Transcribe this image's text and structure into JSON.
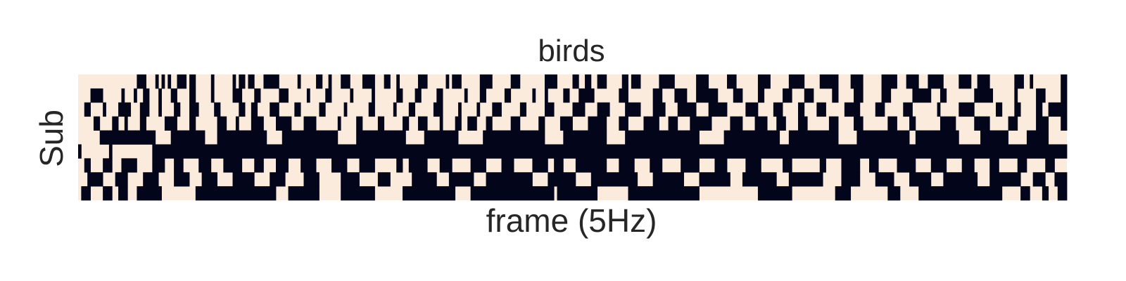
{
  "chart_data": {
    "type": "heatmap",
    "title": "birds",
    "xlabel": "frame (5Hz)",
    "ylabel": "Sub",
    "n_rows": 9,
    "n_frames": 320,
    "colors": {
      "0": "#faebdd",
      "1": "#03051a"
    },
    "grid": false,
    "x_ticks": false,
    "y_ticks": false,
    "colorbar": false,
    "rows": [
      {
        "on": [
          [
            19,
            21
          ],
          [
            25,
            25
          ],
          [
            27,
            27
          ],
          [
            29,
            29
          ],
          [
            32,
            34
          ],
          [
            36,
            37
          ],
          [
            43,
            43
          ],
          [
            50,
            50
          ],
          [
            52,
            53
          ],
          [
            55,
            56
          ],
          [
            60,
            64
          ],
          [
            71,
            71
          ],
          [
            77,
            78
          ],
          [
            81,
            81
          ],
          [
            85,
            87
          ],
          [
            92,
            95
          ],
          [
            99,
            100
          ],
          [
            103,
            103
          ],
          [
            110,
            112
          ],
          [
            119,
            119
          ],
          [
            121,
            123
          ],
          [
            130,
            133
          ],
          [
            140,
            142
          ],
          [
            151,
            154
          ],
          [
            160,
            161
          ],
          [
            164,
            165
          ],
          [
            168,
            170
          ],
          [
            176,
            177
          ],
          [
            179,
            181
          ],
          [
            188,
            192
          ],
          [
            200,
            203
          ],
          [
            210,
            212
          ],
          [
            220,
            223
          ],
          [
            230,
            234
          ],
          [
            240,
            245
          ],
          [
            250,
            253
          ],
          [
            260,
            264
          ],
          [
            268,
            271
          ],
          [
            275,
            279
          ],
          [
            285,
            288
          ],
          [
            291,
            294
          ],
          [
            303,
            305
          ],
          [
            308,
            308
          ],
          [
            318,
            319
          ]
        ]
      },
      {
        "on": [
          [
            4,
            7
          ],
          [
            14,
            14
          ],
          [
            18,
            18
          ],
          [
            21,
            22
          ],
          [
            26,
            26
          ],
          [
            30,
            31
          ],
          [
            36,
            37
          ],
          [
            43,
            43
          ],
          [
            50,
            52
          ],
          [
            57,
            58
          ],
          [
            65,
            67
          ],
          [
            74,
            74
          ],
          [
            80,
            81
          ],
          [
            88,
            88
          ],
          [
            95,
            95
          ],
          [
            103,
            104
          ],
          [
            109,
            110
          ],
          [
            116,
            117
          ],
          [
            125,
            125
          ],
          [
            130,
            131
          ],
          [
            138,
            139
          ],
          [
            147,
            147
          ],
          [
            151,
            151
          ],
          [
            157,
            158
          ],
          [
            162,
            166
          ],
          [
            175,
            177
          ],
          [
            186,
            188
          ],
          [
            193,
            196
          ],
          [
            200,
            206
          ],
          [
            212,
            214
          ],
          [
            220,
            221
          ],
          [
            228,
            230
          ],
          [
            235,
            237
          ],
          [
            244,
            245
          ],
          [
            251,
            253
          ],
          [
            260,
            262
          ],
          [
            270,
            275
          ],
          [
            279,
            280
          ],
          [
            290,
            295
          ],
          [
            303,
            303
          ],
          [
            310,
            312
          ],
          [
            318,
            319
          ]
        ]
      },
      {
        "on": [
          [
            2,
            3
          ],
          [
            8,
            8
          ],
          [
            13,
            16
          ],
          [
            20,
            22
          ],
          [
            26,
            26
          ],
          [
            31,
            32
          ],
          [
            36,
            38
          ],
          [
            44,
            45
          ],
          [
            52,
            53
          ],
          [
            56,
            57
          ],
          [
            62,
            64
          ],
          [
            70,
            71
          ],
          [
            78,
            79
          ],
          [
            86,
            86
          ],
          [
            94,
            95
          ],
          [
            102,
            102
          ],
          [
            107,
            108
          ],
          [
            115,
            117
          ],
          [
            123,
            123
          ],
          [
            129,
            129
          ],
          [
            134,
            136
          ],
          [
            143,
            144
          ],
          [
            151,
            153
          ],
          [
            160,
            163
          ],
          [
            168,
            171
          ],
          [
            177,
            181
          ],
          [
            186,
            189
          ],
          [
            194,
            199
          ],
          [
            204,
            209
          ],
          [
            216,
            219
          ],
          [
            225,
            227
          ],
          [
            233,
            234
          ],
          [
            239,
            241
          ],
          [
            248,
            252
          ],
          [
            258,
            260
          ],
          [
            267,
            269
          ],
          [
            278,
            278
          ],
          [
            285,
            289
          ],
          [
            297,
            298
          ],
          [
            303,
            304
          ],
          [
            310,
            311
          ],
          [
            314,
            319
          ]
        ]
      },
      {
        "on": [
          [
            5,
            6
          ],
          [
            11,
            12
          ],
          [
            15,
            15
          ],
          [
            20,
            21
          ],
          [
            28,
            31
          ],
          [
            36,
            37
          ],
          [
            45,
            47
          ],
          [
            51,
            51
          ],
          [
            56,
            59
          ],
          [
            64,
            68
          ],
          [
            73,
            76
          ],
          [
            84,
            84
          ],
          [
            90,
            91
          ],
          [
            97,
            98
          ],
          [
            105,
            106
          ],
          [
            110,
            112
          ],
          [
            117,
            117
          ],
          [
            122,
            123
          ],
          [
            126,
            128
          ],
          [
            132,
            133
          ],
          [
            140,
            142
          ],
          [
            149,
            150
          ],
          [
            156,
            159
          ],
          [
            165,
            170
          ],
          [
            175,
            177
          ],
          [
            183,
            187
          ],
          [
            191,
            193
          ],
          [
            198,
            204
          ],
          [
            211,
            214
          ],
          [
            219,
            222
          ],
          [
            226,
            228
          ],
          [
            233,
            235
          ],
          [
            243,
            245
          ],
          [
            251,
            253
          ],
          [
            262,
            264
          ],
          [
            269,
            270
          ],
          [
            279,
            283
          ],
          [
            290,
            294
          ],
          [
            301,
            303
          ],
          [
            310,
            313
          ],
          [
            318,
            319
          ]
        ]
      },
      {
        "on": [
          [
            7,
            24
          ],
          [
            30,
            40
          ],
          [
            45,
            60
          ],
          [
            66,
            83
          ],
          [
            90,
            105
          ],
          [
            112,
            122
          ],
          [
            131,
            150
          ],
          [
            157,
            170
          ],
          [
            177,
            200
          ],
          [
            209,
            226
          ],
          [
            230,
            245
          ],
          [
            252,
            268
          ],
          [
            271,
            284
          ],
          [
            292,
            300
          ],
          [
            307,
            313
          ]
        ]
      },
      {
        "on": [
          [
            0,
            0
          ],
          [
            10,
            10
          ],
          [
            24,
            319
          ]
        ]
      },
      {
        "on": [
          [
            2,
            3
          ],
          [
            8,
            10
          ],
          [
            14,
            18
          ],
          [
            24,
            27
          ],
          [
            31,
            33
          ],
          [
            39,
            42
          ],
          [
            47,
            52
          ],
          [
            57,
            59
          ],
          [
            64,
            67
          ],
          [
            72,
            76
          ],
          [
            82,
            86
          ],
          [
            91,
            95
          ],
          [
            103,
            104
          ],
          [
            107,
            112
          ],
          [
            117,
            120
          ],
          [
            127,
            131
          ],
          [
            137,
            140
          ],
          [
            147,
            151
          ],
          [
            154,
            156
          ],
          [
            161,
            170
          ],
          [
            175,
            179
          ],
          [
            185,
            188
          ],
          [
            195,
            200
          ],
          [
            206,
            209
          ],
          [
            216,
            220
          ],
          [
            228,
            230
          ],
          [
            240,
            241
          ],
          [
            247,
            252
          ],
          [
            256,
            258
          ],
          [
            265,
            270
          ],
          [
            276,
            280
          ],
          [
            286,
            289
          ],
          [
            295,
            297
          ],
          [
            304,
            306
          ],
          [
            313,
            315
          ]
        ]
      },
      {
        "on": [
          [
            3,
            7
          ],
          [
            12,
            15
          ],
          [
            21,
            25
          ],
          [
            31,
            35
          ],
          [
            40,
            44
          ],
          [
            50,
            56
          ],
          [
            62,
            66
          ],
          [
            73,
            77
          ],
          [
            85,
            90
          ],
          [
            97,
            100
          ],
          [
            108,
            115
          ],
          [
            120,
            127
          ],
          [
            132,
            146
          ],
          [
            152,
            160
          ],
          [
            166,
            180
          ],
          [
            186,
            195
          ],
          [
            201,
            210
          ],
          [
            215,
            225
          ],
          [
            230,
            240
          ],
          [
            247,
            252
          ],
          [
            258,
            263
          ],
          [
            269,
            275
          ],
          [
            280,
            290
          ],
          [
            295,
            304
          ],
          [
            309,
            312
          ],
          [
            316,
            319
          ]
        ]
      },
      {
        "on": [
          [
            1,
            3
          ],
          [
            8,
            10
          ],
          [
            13,
            15
          ],
          [
            19,
            26
          ],
          [
            38,
            63
          ],
          [
            68,
            77
          ],
          [
            85,
            95
          ],
          [
            105,
            121
          ],
          [
            127,
            153
          ],
          [
            155,
            167
          ],
          [
            178,
            200
          ],
          [
            220,
            230
          ],
          [
            245,
            249
          ],
          [
            262,
            265
          ],
          [
            272,
            298
          ],
          [
            305,
            307
          ],
          [
            312,
            313
          ],
          [
            317,
            319
          ]
        ]
      }
    ]
  }
}
